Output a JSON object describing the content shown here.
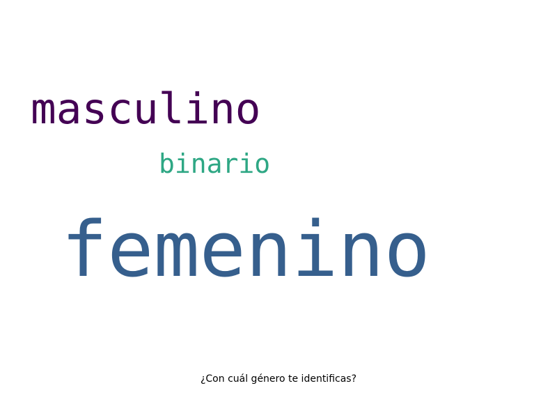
{
  "cloud": {
    "words": [
      {
        "text": "masculino",
        "color": "#440154"
      },
      {
        "text": "binario",
        "color": "#2ea784"
      },
      {
        "text": "femenino",
        "color": "#365f8d"
      }
    ]
  },
  "caption": "¿Con cuál género te identificas?"
}
